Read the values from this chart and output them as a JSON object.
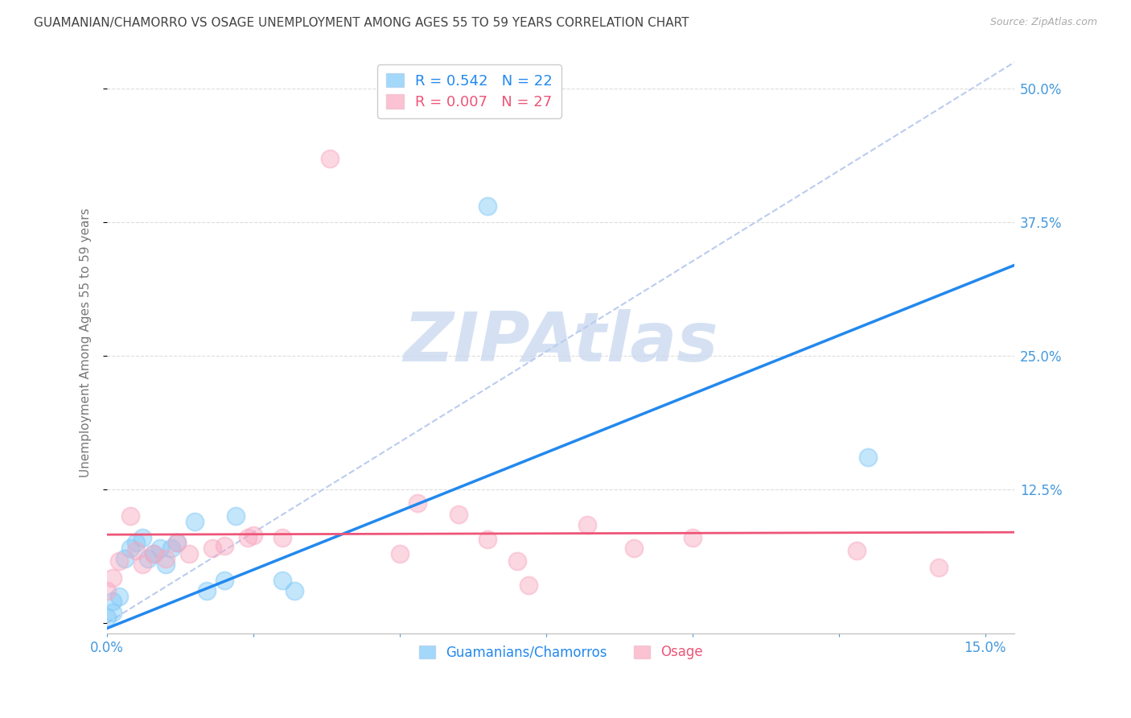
{
  "title": "GUAMANIAN/CHAMORRO VS OSAGE UNEMPLOYMENT AMONG AGES 55 TO 59 YEARS CORRELATION CHART",
  "source": "Source: ZipAtlas.com",
  "ylabel": "Unemployment Among Ages 55 to 59 years",
  "xlim": [
    0.0,
    0.155
  ],
  "ylim": [
    -0.01,
    0.535
  ],
  "blue_R": 0.542,
  "blue_N": 22,
  "pink_R": 0.007,
  "pink_N": 27,
  "blue_color": "#7EC8F8",
  "pink_color": "#F8A8C0",
  "blue_line_color": "#2288EE",
  "pink_line_color": "#EE5577",
  "ref_line_color": "#BBCCEE",
  "watermark_color": "#C8D8EF",
  "title_color": "#444444",
  "axis_label_color": "#4499DD",
  "grid_color": "#DDDDDD",
  "blue_scatter_x": [
    0.0,
    0.001,
    0.001,
    0.002,
    0.003,
    0.004,
    0.005,
    0.006,
    0.007,
    0.008,
    0.009,
    0.01,
    0.011,
    0.012,
    0.015,
    0.017,
    0.02,
    0.022,
    0.03,
    0.032,
    0.065,
    0.13
  ],
  "blue_scatter_y": [
    0.005,
    0.01,
    0.02,
    0.025,
    0.06,
    0.07,
    0.075,
    0.08,
    0.06,
    0.065,
    0.07,
    0.055,
    0.07,
    0.075,
    0.095,
    0.03,
    0.04,
    0.1,
    0.04,
    0.03,
    0.39,
    0.155
  ],
  "pink_scatter_x": [
    0.0,
    0.001,
    0.002,
    0.004,
    0.005,
    0.006,
    0.008,
    0.01,
    0.012,
    0.014,
    0.018,
    0.02,
    0.024,
    0.025,
    0.03,
    0.038,
    0.05,
    0.053,
    0.06,
    0.065,
    0.07,
    0.072,
    0.082,
    0.09,
    0.1,
    0.128,
    0.142
  ],
  "pink_scatter_y": [
    0.03,
    0.042,
    0.058,
    0.1,
    0.068,
    0.055,
    0.065,
    0.06,
    0.075,
    0.065,
    0.07,
    0.072,
    0.08,
    0.082,
    0.08,
    0.435,
    0.065,
    0.112,
    0.102,
    0.078,
    0.058,
    0.035,
    0.092,
    0.07,
    0.08,
    0.068,
    0.052
  ],
  "grid_yticks": [
    0.125,
    0.25,
    0.375,
    0.5
  ],
  "blue_trend_x0": 0.0,
  "blue_trend_y0": -0.005,
  "blue_trend_x1": 0.155,
  "blue_trend_y1": 0.335,
  "pink_trend_y": 0.074,
  "ref_line_x0": 0.0,
  "ref_line_y0": 0.0,
  "ref_line_x1": 0.155,
  "ref_line_y1": 0.525,
  "xtick_show": [
    0.0,
    0.15
  ],
  "xtick_show_labels": [
    "0.0%",
    "15.0%"
  ]
}
